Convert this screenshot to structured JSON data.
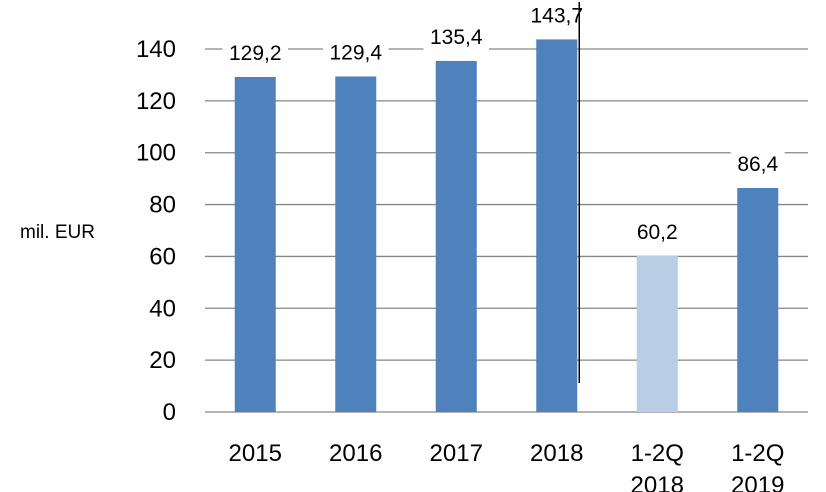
{
  "chart_data": {
    "type": "bar",
    "ylabel": "mil. EUR",
    "ylim": [
      0,
      140
    ],
    "yticks": [
      "0",
      "20",
      "40",
      "60",
      "80",
      "100",
      "120",
      "140"
    ],
    "grid": true,
    "categories": [
      [
        "2015"
      ],
      [
        "2016"
      ],
      [
        "2017"
      ],
      [
        "2018"
      ],
      [
        "1-2Q",
        "2018"
      ],
      [
        "1-2Q",
        "2019"
      ]
    ],
    "values": [
      129.2,
      129.4,
      135.4,
      143.7,
      60.2,
      86.4
    ],
    "value_labels": [
      "129,2",
      "129,4",
      "135,4",
      "143,7",
      "60,2",
      "86,4"
    ],
    "bar_colors": [
      "#4f81bd",
      "#4f81bd",
      "#4f81bd",
      "#4f81bd",
      "#b9cde5",
      "#4f81bd"
    ],
    "separator_after_category": 3
  }
}
